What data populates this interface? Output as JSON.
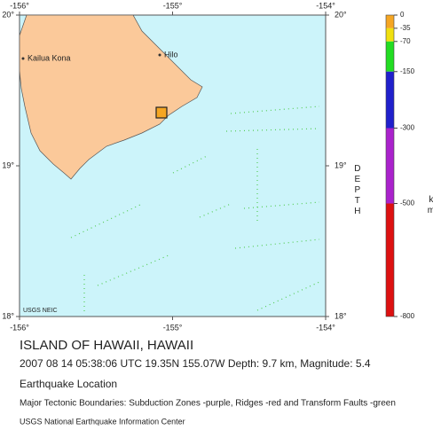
{
  "map": {
    "lon_ticks": [
      {
        "value": -156,
        "label": "-156°"
      },
      {
        "value": -155,
        "label": "-155°"
      },
      {
        "value": -154,
        "label": "-154°"
      }
    ],
    "lat_ticks": [
      {
        "value": 20,
        "label": "20°"
      },
      {
        "value": 19,
        "label": "19°"
      },
      {
        "value": 18,
        "label": "18°"
      }
    ],
    "places": [
      "Kailua Kona",
      "Hilo"
    ],
    "credit": "USGS NEIC"
  },
  "depth_legend": {
    "ticks": [
      0,
      -35,
      -70,
      -150,
      -300,
      -500,
      -800
    ],
    "band_colors": [
      "#f5a623",
      "#f0e010",
      "#22dd22",
      "#2020cc",
      "#aa22cc",
      "#dd1111"
    ],
    "title": "DEPTH",
    "unit": "km"
  },
  "caption": {
    "title": "ISLAND OF HAWAII, HAWAII",
    "details": "2007 08 14 05:38:06 UTC 19.35N 155.07W Depth: 9.7 km, Magnitude: 5.4",
    "subtitle": "Earthquake Location",
    "boundaries": "Major Tectonic Boundaries: Subduction Zones -purple, Ridges -red  and Transform Faults -green",
    "source": "USGS National Earthquake Information Center"
  }
}
